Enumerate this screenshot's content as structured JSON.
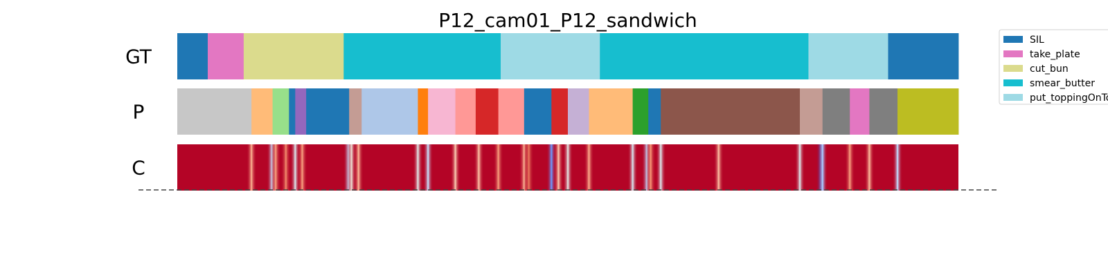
{
  "chart_data": {
    "type": "segmentation-timeline",
    "title": "P12_cam01_P12_sandwich",
    "x_range": [
      0,
      1000
    ],
    "rows": [
      {
        "label": "GT",
        "segments": [
          {
            "start": 0,
            "end": 39,
            "color": "#1f77b4"
          },
          {
            "start": 39,
            "end": 85,
            "color": "#e377c2"
          },
          {
            "start": 85,
            "end": 213,
            "color": "#dbdb8d"
          },
          {
            "start": 213,
            "end": 414,
            "color": "#17becf"
          },
          {
            "start": 414,
            "end": 541,
            "color": "#9edae5"
          },
          {
            "start": 541,
            "end": 808,
            "color": "#17becf"
          },
          {
            "start": 808,
            "end": 910,
            "color": "#9edae5"
          },
          {
            "start": 910,
            "end": 1000,
            "color": "#1f77b4"
          }
        ]
      },
      {
        "label": "P",
        "segments": [
          {
            "start": 0,
            "end": 95,
            "color": "#c7c7c7"
          },
          {
            "start": 95,
            "end": 122,
            "color": "#ffbb78"
          },
          {
            "start": 122,
            "end": 143,
            "color": "#98df8a"
          },
          {
            "start": 143,
            "end": 151,
            "color": "#1f77b4"
          },
          {
            "start": 151,
            "end": 165,
            "color": "#9467bd"
          },
          {
            "start": 165,
            "end": 220,
            "color": "#1f77b4"
          },
          {
            "start": 220,
            "end": 236,
            "color": "#c49c94"
          },
          {
            "start": 236,
            "end": 308,
            "color": "#aec7e8"
          },
          {
            "start": 308,
            "end": 321,
            "color": "#ff7f0e"
          },
          {
            "start": 321,
            "end": 356,
            "color": "#f7b6d2"
          },
          {
            "start": 356,
            "end": 382,
            "color": "#ff9896"
          },
          {
            "start": 382,
            "end": 411,
            "color": "#d62728"
          },
          {
            "start": 411,
            "end": 444,
            "color": "#ff9896"
          },
          {
            "start": 444,
            "end": 479,
            "color": "#1f77b4"
          },
          {
            "start": 479,
            "end": 500,
            "color": "#d62728"
          },
          {
            "start": 500,
            "end": 527,
            "color": "#c5b0d5"
          },
          {
            "start": 527,
            "end": 583,
            "color": "#ffbb78"
          },
          {
            "start": 583,
            "end": 603,
            "color": "#2ca02c"
          },
          {
            "start": 603,
            "end": 619,
            "color": "#1f77b4"
          },
          {
            "start": 619,
            "end": 797,
            "color": "#8c564b"
          },
          {
            "start": 797,
            "end": 826,
            "color": "#c49c94"
          },
          {
            "start": 826,
            "end": 861,
            "color": "#7f7f7f"
          },
          {
            "start": 861,
            "end": 886,
            "color": "#e377c2"
          },
          {
            "start": 886,
            "end": 922,
            "color": "#7f7f7f"
          },
          {
            "start": 922,
            "end": 1000,
            "color": "#bcbd22"
          }
        ]
      },
      {
        "label": "C",
        "base_color": "#b40426",
        "highlights": [
          {
            "pos": 95,
            "color": "#f7a98b"
          },
          {
            "pos": 121,
            "color": "#c5d6f2"
          },
          {
            "pos": 126,
            "color": "#f49a7b"
          },
          {
            "pos": 139,
            "color": "#ee8468"
          },
          {
            "pos": 151,
            "color": "#d8dce2"
          },
          {
            "pos": 160,
            "color": "#f4987a"
          },
          {
            "pos": 219,
            "color": "#c0d4f5"
          },
          {
            "pos": 223,
            "color": "#e9d5cb"
          },
          {
            "pos": 232,
            "color": "#f7af91"
          },
          {
            "pos": 308,
            "color": "#dcdddd"
          },
          {
            "pos": 321,
            "color": "#c5d6f2"
          },
          {
            "pos": 356,
            "color": "#f5c2aa"
          },
          {
            "pos": 386,
            "color": "#f7b89c"
          },
          {
            "pos": 411,
            "color": "#f39778"
          },
          {
            "pos": 444,
            "color": "#f7ac8e"
          },
          {
            "pos": 450,
            "color": "#e7745b"
          },
          {
            "pos": 479,
            "color": "#6f92f3"
          },
          {
            "pos": 488,
            "color": "#f5c0a7"
          },
          {
            "pos": 500,
            "color": "#dfdbd9"
          },
          {
            "pos": 527,
            "color": "#f6a385"
          },
          {
            "pos": 583,
            "color": "#d5dbe5"
          },
          {
            "pos": 601,
            "color": "#bfd3f6"
          },
          {
            "pos": 606,
            "color": "#f29072"
          },
          {
            "pos": 619,
            "color": "#d9dce1"
          },
          {
            "pos": 693,
            "color": "#f7b79b"
          },
          {
            "pos": 797,
            "color": "#dadce0"
          },
          {
            "pos": 824,
            "color": "#3b4cc0"
          },
          {
            "pos": 826,
            "color": "#aac7fd"
          },
          {
            "pos": 861,
            "color": "#f4987a"
          },
          {
            "pos": 886,
            "color": "#f7b396"
          },
          {
            "pos": 922,
            "color": "#c0d4f5"
          }
        ]
      }
    ],
    "legend": {
      "placement": "top-right",
      "entries": [
        {
          "label": "SIL",
          "color": "#1f77b4"
        },
        {
          "label": "take_plate",
          "color": "#e377c2"
        },
        {
          "label": "cut_bun",
          "color": "#dbdb8d"
        },
        {
          "label": "smear_butter",
          "color": "#17becf"
        },
        {
          "label": "put_toppingOnTop",
          "color": "#9edae5"
        }
      ]
    }
  }
}
